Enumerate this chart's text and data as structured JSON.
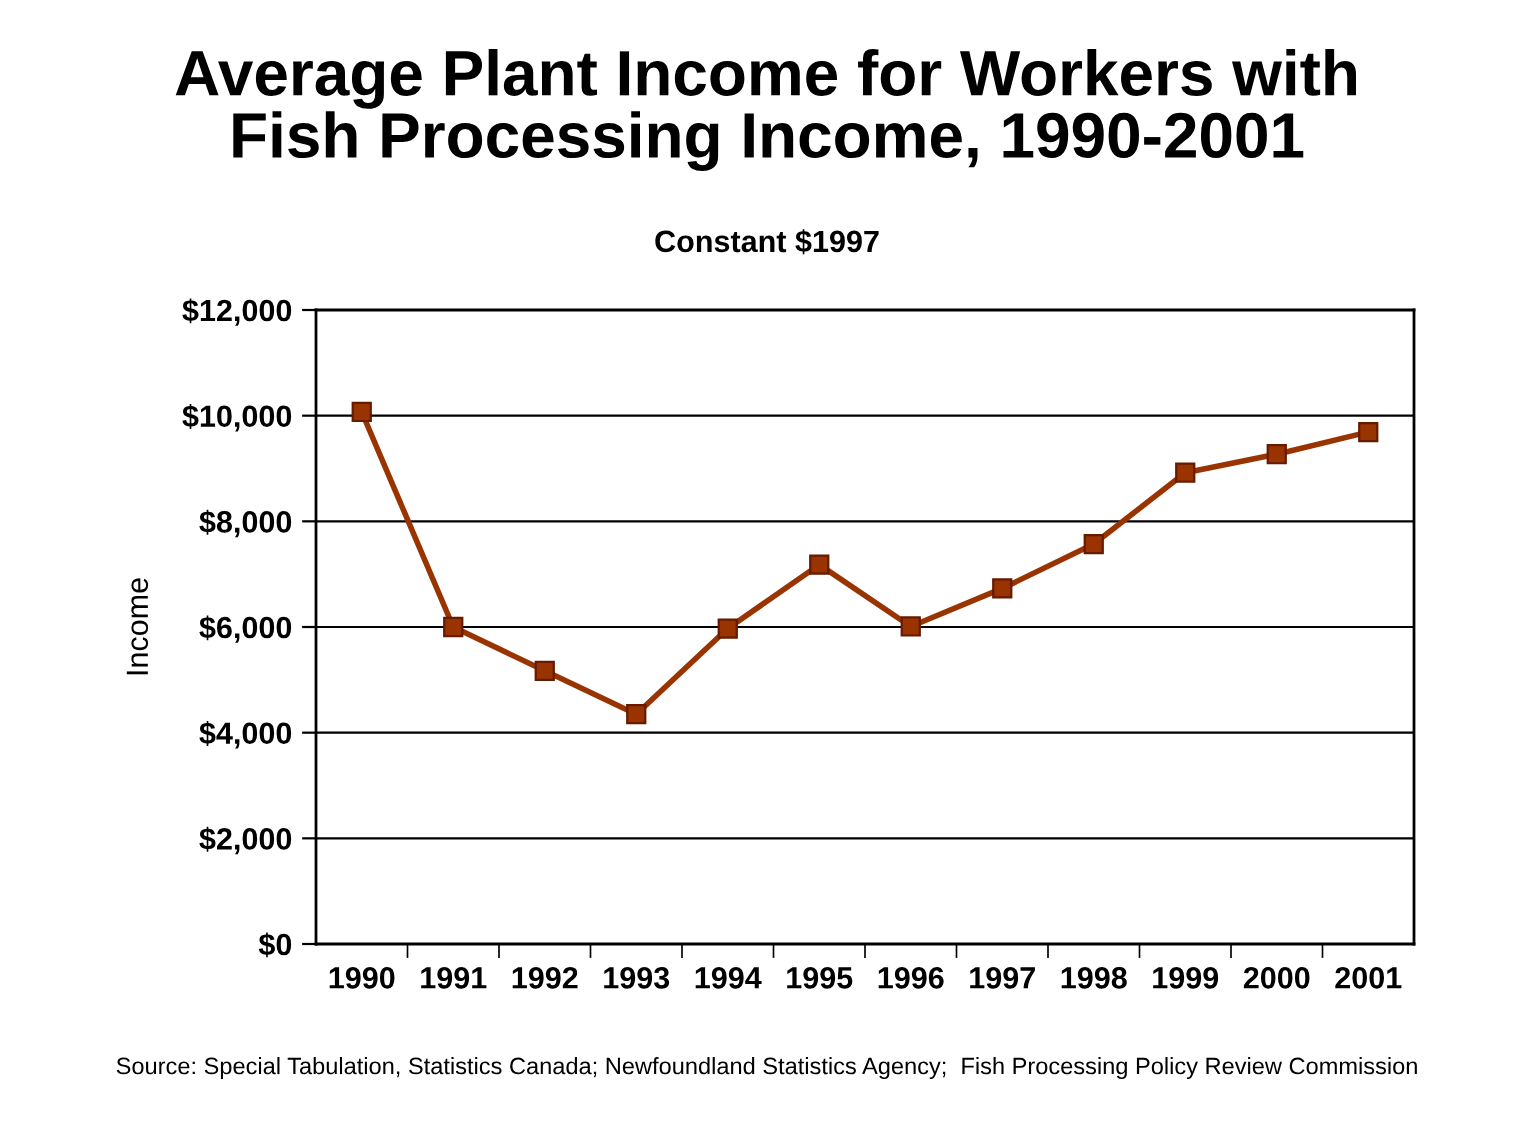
{
  "chart_data": {
    "type": "line",
    "title": "Average Plant Income for Workers with\nFish Processing Income, 1990-2001",
    "subtitle": "Constant $1997",
    "ylabel": "Income",
    "categories": [
      "1990",
      "1991",
      "1992",
      "1993",
      "1994",
      "1995",
      "1996",
      "1997",
      "1998",
      "1999",
      "2000",
      "2001"
    ],
    "series": [
      {
        "color": "#993300",
        "values": [
          10070,
          6000,
          5170,
          4350,
          5970,
          7180,
          6010,
          6730,
          7570,
          8920,
          9270,
          9690
        ]
      }
    ],
    "ylim": [
      0,
      12000
    ],
    "yticks": [
      {
        "value": 0,
        "label": "$0"
      },
      {
        "value": 2000,
        "label": "$2,000"
      },
      {
        "value": 4000,
        "label": "$4,000"
      },
      {
        "value": 6000,
        "label": "$6,000"
      },
      {
        "value": 8000,
        "label": "$8,000"
      },
      {
        "value": 10000,
        "label": "$10,000"
      },
      {
        "value": 12000,
        "label": "$12,000"
      }
    ],
    "grid": "y",
    "marker": "square",
    "line_style": "solid",
    "annotations": [
      "Source: Special Tabulation, Statistics Canada; Newfoundland Statistics Agency;  Fish Processing Policy Review Commission"
    ]
  }
}
